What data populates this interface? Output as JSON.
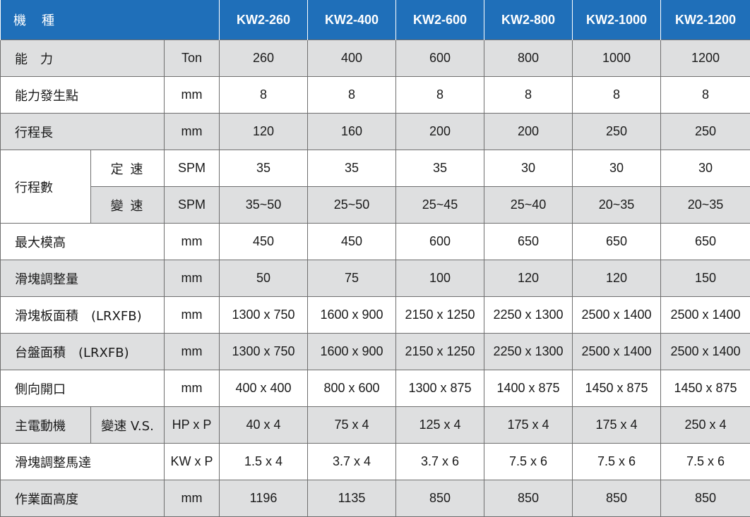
{
  "header": {
    "label": "機　種",
    "models": [
      "KW2-260",
      "KW2-400",
      "KW2-600",
      "KW2-800",
      "KW2-1000",
      "KW2-1200"
    ]
  },
  "rows": {
    "capacity": {
      "label": "能　力",
      "unit": "Ton",
      "values": [
        "260",
        "400",
        "600",
        "800",
        "1000",
        "1200"
      ]
    },
    "rated_point": {
      "label": "能力發生點",
      "unit": "mm",
      "values": [
        "8",
        "8",
        "8",
        "8",
        "8",
        "8"
      ]
    },
    "stroke_length": {
      "label": "行程長",
      "unit": "mm",
      "values": [
        "120",
        "160",
        "200",
        "200",
        "250",
        "250"
      ]
    },
    "strokes": {
      "label": "行程數",
      "fixed": {
        "sub": "定 速",
        "unit": "SPM",
        "values": [
          "35",
          "35",
          "35",
          "30",
          "30",
          "30"
        ]
      },
      "variable": {
        "sub": "變 速",
        "unit": "SPM",
        "values": [
          "35~50",
          "25~50",
          "25~45",
          "25~40",
          "20~35",
          "20~35"
        ]
      }
    },
    "die_height": {
      "label": "最大模高",
      "unit": "mm",
      "values": [
        "450",
        "450",
        "600",
        "650",
        "650",
        "650"
      ]
    },
    "slide_adjust": {
      "label": "滑塊調整量",
      "unit": "mm",
      "values": [
        "50",
        "75",
        "100",
        "120",
        "120",
        "150"
      ]
    },
    "slide_area": {
      "label": "滑塊板面積　(LRXFB)",
      "unit": "mm",
      "values": [
        "1300 x 750",
        "1600 x 900",
        "2150 x 1250",
        "2250 x 1300",
        "2500 x 1400",
        "2500 x 1400"
      ]
    },
    "bolster_area": {
      "label": "台盤面積　(LRXFB)",
      "unit": "mm",
      "values": [
        "1300 x 750",
        "1600 x 900",
        "2150 x 1250",
        "2250 x 1300",
        "2500 x 1400",
        "2500 x 1400"
      ]
    },
    "side_opening": {
      "label": "側向開口",
      "unit": "mm",
      "values": [
        "400 x 400",
        "800 x 600",
        "1300 x 875",
        "1400 x 875",
        "1450 x 875",
        "1450 x 875"
      ]
    },
    "main_motor": {
      "label": "主電動機",
      "sub": "變速 V.S.",
      "unit": "HP x P",
      "values": [
        "40 x 4",
        "75 x 4",
        "125 x 4",
        "175 x 4",
        "175 x 4",
        "250 x 4"
      ]
    },
    "slide_motor": {
      "label": "滑塊調整馬達",
      "unit": "KW x P",
      "values": [
        "1.5 x 4",
        "3.7 x 4",
        "3.7 x 6",
        "7.5 x 6",
        "7.5 x 6",
        "7.5 x 6"
      ]
    },
    "work_height": {
      "label": "作業面高度",
      "unit": "mm",
      "values": [
        "1196",
        "1135",
        "850",
        "850",
        "850",
        "850"
      ]
    }
  }
}
